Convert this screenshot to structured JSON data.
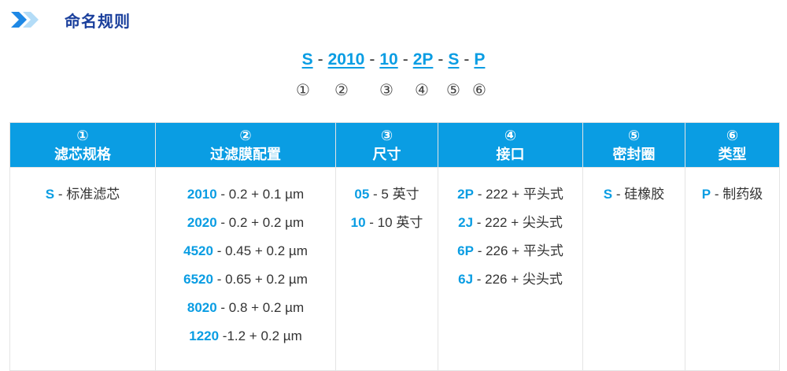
{
  "header": {
    "title": "命名规则",
    "icon": "double-chevron-right-icon"
  },
  "code": {
    "parts": [
      "S",
      "2010",
      "10",
      "2P",
      "S",
      "P"
    ],
    "separator": "-"
  },
  "markers": [
    "①",
    "②",
    "③",
    "④",
    "⑤",
    "⑥"
  ],
  "colors": {
    "accent": "#0a9de3",
    "title": "#1a3f9c"
  },
  "table": {
    "columns": [
      {
        "num": "①",
        "label": "滤芯规格",
        "items": [
          {
            "key": "S",
            "desc": " - 标准滤芯"
          }
        ]
      },
      {
        "num": "②",
        "label": "过滤膜配置",
        "items": [
          {
            "key": "2010",
            "desc": " - 0.2 + 0.1 µm"
          },
          {
            "key": "2020",
            "desc": " - 0.2 + 0.2 µm"
          },
          {
            "key": "4520",
            "desc": " - 0.45 + 0.2 µm"
          },
          {
            "key": "6520",
            "desc": " - 0.65 + 0.2 µm"
          },
          {
            "key": "8020",
            "desc": " - 0.8 + 0.2 µm"
          },
          {
            "key": "1220",
            "desc": " -1.2 + 0.2 µm"
          }
        ]
      },
      {
        "num": "③",
        "label": "尺寸",
        "items": [
          {
            "key": "05",
            "desc": " - 5 英寸"
          },
          {
            "key": "10",
            "desc": " - 10 英寸"
          }
        ]
      },
      {
        "num": "④",
        "label": "接口",
        "items": [
          {
            "key": "2P",
            "desc": " - 222 + 平头式"
          },
          {
            "key": "2J",
            "desc": " - 222 + 尖头式"
          },
          {
            "key": "6P",
            "desc": " - 226 + 平头式"
          },
          {
            "key": "6J",
            "desc": " - 226 + 尖头式"
          }
        ]
      },
      {
        "num": "⑤",
        "label": "密封圈",
        "items": [
          {
            "key": "S",
            "desc": " - 硅橡胶"
          }
        ]
      },
      {
        "num": "⑥",
        "label": "类型",
        "items": [
          {
            "key": "P",
            "desc": " - 制药级"
          }
        ]
      }
    ]
  }
}
